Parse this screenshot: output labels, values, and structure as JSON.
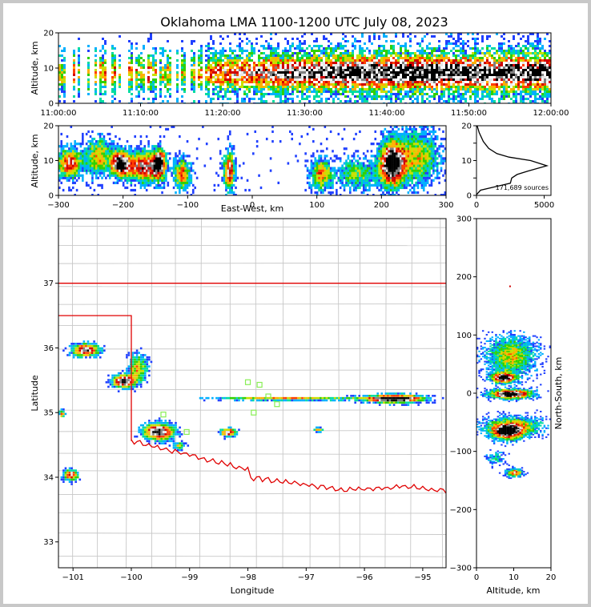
{
  "colors": {
    "state_line": "#e00000",
    "county_line": "#c8c8c8",
    "station": "#88ee55",
    "axis": "#000000",
    "scale": [
      "#6a00d8",
      "#2040ff",
      "#00b0ff",
      "#00dca0",
      "#30d000",
      "#c8e000",
      "#ffb000",
      "#ff4000",
      "#d00000",
      "#e8e8e8",
      "#808080",
      "#000000"
    ]
  },
  "chart_data": [
    {
      "type": "heatmap",
      "title": "Oklahoma LMA 1100-1200 UTC July 08, 2023",
      "ylabel": "Altitude, km",
      "xlabel": "",
      "x_ticks": [
        "11:00:00",
        "11:10:00",
        "11:20:00",
        "11:30:00",
        "11:40:00",
        "11:50:00",
        "12:00:00"
      ],
      "y_ticks": [
        "0",
        "10",
        "20"
      ],
      "ylim": [
        0,
        20
      ]
    },
    {
      "type": "heatmap",
      "xlabel": "East-West, km",
      "ylabel": "Altitude, km",
      "x_ticks": [
        "−300",
        "−200",
        "−100",
        "0",
        "100",
        "200",
        "300"
      ],
      "y_ticks": [
        "0",
        "10",
        "20"
      ],
      "xlim": [
        -300,
        300
      ],
      "ylim": [
        0,
        20
      ]
    },
    {
      "type": "line",
      "annotation": "171,689 sources",
      "x_ticks": [
        "0",
        "5000"
      ],
      "y_ticks": [
        "0",
        "5",
        "10",
        "15",
        "20"
      ],
      "xlim": [
        0,
        5500
      ],
      "ylim": [
        0,
        20
      ],
      "points": [
        [
          0,
          0.2
        ],
        [
          300,
          1.5
        ],
        [
          1400,
          2.5
        ],
        [
          2500,
          3.5
        ],
        [
          2600,
          5
        ],
        [
          3000,
          6
        ],
        [
          3800,
          7
        ],
        [
          5200,
          8.5
        ],
        [
          4000,
          10
        ],
        [
          2400,
          11
        ],
        [
          1500,
          12
        ],
        [
          900,
          13.5
        ],
        [
          500,
          15.5
        ],
        [
          200,
          18
        ],
        [
          50,
          20
        ]
      ]
    },
    {
      "type": "heatmap",
      "xlabel": "Longitude",
      "ylabel": "Latitude",
      "x_ticks": [
        "−101",
        "−100",
        "−99",
        "−98",
        "−97",
        "−96",
        "−95"
      ],
      "y_ticks": [
        "33",
        "34",
        "35",
        "36",
        "37"
      ],
      "xlim": [
        -101.25,
        -94.6
      ],
      "ylim": [
        32.6,
        38.0
      ]
    },
    {
      "type": "heatmap",
      "xlabel": "Altitude, km",
      "ylabel": "North-South, km",
      "x_ticks": [
        "0",
        "10",
        "20"
      ],
      "y_ticks": [
        "−300",
        "−200",
        "−100",
        "0",
        "100",
        "200",
        "300"
      ],
      "xlim": [
        0,
        20
      ],
      "ylim": [
        -300,
        300
      ]
    }
  ]
}
